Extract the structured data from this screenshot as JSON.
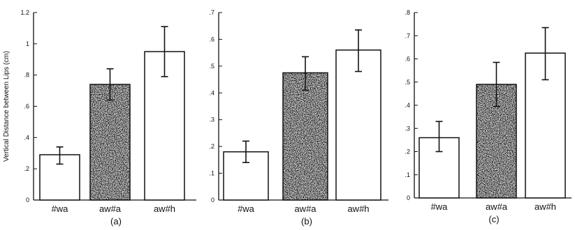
{
  "chart_data": [
    {
      "type": "bar",
      "panel_label": "(a)",
      "ylabel": "Vertical Distance between Lips (cm)",
      "categories": [
        "#wa",
        "aw#a",
        "aw#h"
      ],
      "values": [
        0.29,
        0.74,
        0.95
      ],
      "error_low": [
        0.23,
        0.64,
        0.79
      ],
      "error_high": [
        0.34,
        0.84,
        1.11
      ],
      "bar_fills": [
        "white",
        "speckled",
        "white"
      ],
      "ylim": [
        0,
        1.2
      ],
      "yticks": [
        0,
        0.2,
        0.4,
        0.6,
        0.8,
        1,
        1.2
      ],
      "ytick_labels": [
        "0",
        ".2",
        ".4",
        ".6",
        ".8",
        "1",
        "1.2"
      ]
    },
    {
      "type": "bar",
      "panel_label": "(b)",
      "ylabel": "",
      "categories": [
        "#wa",
        "aw#a",
        "aw#h"
      ],
      "values": [
        0.18,
        0.475,
        0.56
      ],
      "error_low": [
        0.14,
        0.41,
        0.48
      ],
      "error_high": [
        0.22,
        0.535,
        0.635
      ],
      "bar_fills": [
        "white",
        "speckled",
        "white"
      ],
      "ylim": [
        0,
        0.7
      ],
      "yticks": [
        0,
        0.1,
        0.2,
        0.3,
        0.4,
        0.5,
        0.6,
        0.7
      ],
      "ytick_labels": [
        "0",
        ".1",
        ".2",
        ".3",
        ".4",
        ".5",
        ".6",
        ".7"
      ]
    },
    {
      "type": "bar",
      "panel_label": "(c)",
      "ylabel": "",
      "categories": [
        "#wa",
        "aw#a",
        "aw#h"
      ],
      "values": [
        0.26,
        0.49,
        0.625
      ],
      "error_low": [
        0.2,
        0.395,
        0.51
      ],
      "error_high": [
        0.33,
        0.585,
        0.735
      ],
      "bar_fills": [
        "white",
        "speckled",
        "white"
      ],
      "ylim": [
        0,
        0.8
      ],
      "yticks": [
        0,
        0.1,
        0.2,
        0.3,
        0.4,
        0.5,
        0.6,
        0.7,
        0.8
      ],
      "ytick_labels": [
        "0",
        ".1",
        ".2",
        ".3",
        ".4",
        ".5",
        ".6",
        ".7",
        ".8"
      ]
    }
  ]
}
